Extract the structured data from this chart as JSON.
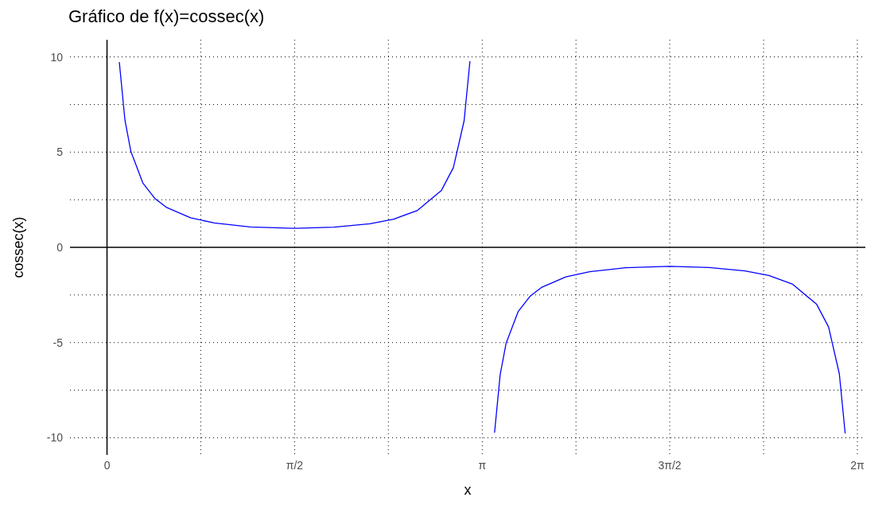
{
  "chart_data": {
    "type": "line",
    "title": "Gráfico de f(x)=cossec(x)",
    "xlabel": "x",
    "ylabel": "cossec(x)",
    "x": [
      0.103,
      0.15,
      0.2,
      0.3,
      0.4,
      0.5,
      0.7,
      0.9,
      1.2,
      1.571,
      1.9,
      2.2,
      2.4,
      2.6,
      2.8,
      2.9,
      2.99,
      3.039,
      3.1416,
      3.245,
      3.292,
      3.342,
      3.442,
      3.542,
      3.642,
      3.842,
      4.042,
      4.342,
      4.712,
      5.042,
      5.342,
      5.542,
      5.742,
      5.942,
      6.042,
      6.132,
      6.181
    ],
    "series": [
      {
        "color": "#0000ff",
        "values": [
          9.73,
          6.69,
          5.03,
          3.38,
          2.57,
          2.09,
          1.55,
          1.28,
          1.07,
          1.0,
          1.06,
          1.24,
          1.48,
          1.94,
          2.99,
          4.18,
          6.64,
          9.77,
          null,
          -9.73,
          -6.69,
          -5.03,
          -3.38,
          -2.57,
          -2.09,
          -1.55,
          -1.28,
          -1.07,
          -1.0,
          -1.06,
          -1.24,
          -1.48,
          -1.94,
          -2.99,
          -4.18,
          -6.64,
          -9.77
        ]
      }
    ],
    "xlim": [
      -0.31,
      6.35
    ],
    "ylim": [
      -10.9,
      10.9
    ],
    "xticks": [
      {
        "value": 0,
        "label": "0"
      },
      {
        "value": 0.785,
        "label": null
      },
      {
        "value": 1.571,
        "label": "π/2"
      },
      {
        "value": 2.356,
        "label": null
      },
      {
        "value": 3.142,
        "label": "π"
      },
      {
        "value": 3.927,
        "label": null
      },
      {
        "value": 4.712,
        "label": "3π/2"
      },
      {
        "value": 5.498,
        "label": null
      },
      {
        "value": 6.283,
        "label": "2π"
      }
    ],
    "yticks": [
      -10,
      {
        "value": -7.5,
        "label": null
      },
      -5,
      {
        "value": -2.5,
        "label": null
      },
      0,
      {
        "value": 2.5,
        "label": null
      },
      5,
      {
        "value": 7.5,
        "label": null
      },
      10
    ],
    "grid": true,
    "marker": "none",
    "line_style": "solid"
  }
}
